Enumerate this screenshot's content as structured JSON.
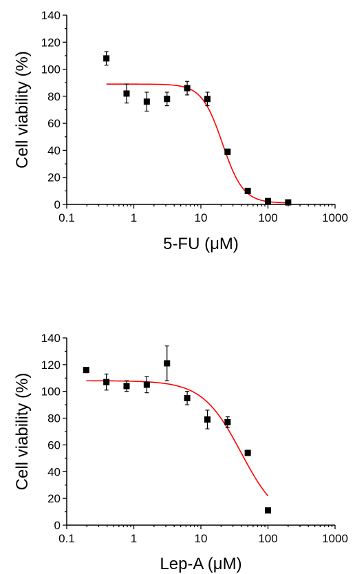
{
  "chart_data": [
    {
      "type": "scatter",
      "title": "",
      "xlabel": "5-FU (μM)",
      "ylabel": "Cell viability (%)",
      "x_scale": "log",
      "xlim": [
        0.1,
        1000
      ],
      "ylim": [
        0,
        140
      ],
      "x_ticks": [
        0.1,
        1,
        10,
        100,
        1000
      ],
      "x_tick_labels": [
        "0.1",
        "1",
        "10",
        "100",
        "1000"
      ],
      "y_ticks": [
        0,
        20,
        40,
        60,
        80,
        100,
        120,
        140
      ],
      "y_tick_labels": [
        "0",
        "20",
        "40",
        "60",
        "80",
        "100",
        "120",
        "140"
      ],
      "grid": false,
      "marker_color": "#000000",
      "fit_color": "#ff0000",
      "points": [
        {
          "x": 0.39,
          "y": 108,
          "err": 5
        },
        {
          "x": 0.78,
          "y": 82,
          "err": 7
        },
        {
          "x": 1.56,
          "y": 76,
          "err": 7
        },
        {
          "x": 3.125,
          "y": 78,
          "err": 5
        },
        {
          "x": 6.25,
          "y": 86,
          "err": 5
        },
        {
          "x": 12.5,
          "y": 78,
          "err": 5
        },
        {
          "x": 25,
          "y": 39,
          "err": 2
        },
        {
          "x": 50,
          "y": 10,
          "err": 1.5
        },
        {
          "x": 100,
          "y": 2.5,
          "err": 1
        },
        {
          "x": 200,
          "y": 1.5,
          "err": 0.8
        }
      ],
      "fit": {
        "top": 89,
        "bottom": 1,
        "ic50": 21,
        "hill": 2.8,
        "x_from": 0.39,
        "x_to": 200
      }
    },
    {
      "type": "scatter",
      "title": "",
      "xlabel": "Lep-A (μM)",
      "ylabel": "Cell viability (%)",
      "x_scale": "log",
      "xlim": [
        0.1,
        1000
      ],
      "ylim": [
        0,
        140
      ],
      "x_ticks": [
        0.1,
        1,
        10,
        100,
        1000
      ],
      "x_tick_labels": [
        "0.1",
        "1",
        "10",
        "100",
        "1000"
      ],
      "y_ticks": [
        0,
        20,
        40,
        60,
        80,
        100,
        120,
        140
      ],
      "y_tick_labels": [
        "0",
        "20",
        "40",
        "60",
        "80",
        "100",
        "120",
        "140"
      ],
      "grid": false,
      "marker_color": "#000000",
      "fit_color": "#ff0000",
      "points": [
        {
          "x": 0.195,
          "y": 116,
          "err": 2
        },
        {
          "x": 0.39,
          "y": 107,
          "err": 6
        },
        {
          "x": 0.78,
          "y": 104,
          "err": 4
        },
        {
          "x": 1.56,
          "y": 105,
          "err": 6
        },
        {
          "x": 3.125,
          "y": 121,
          "err": 13
        },
        {
          "x": 6.25,
          "y": 95,
          "err": 5
        },
        {
          "x": 12.5,
          "y": 79,
          "err": 7
        },
        {
          "x": 25,
          "y": 77,
          "err": 4
        },
        {
          "x": 50,
          "y": 54,
          "err": 2
        },
        {
          "x": 100,
          "y": 11,
          "err": 1
        }
      ],
      "fit": {
        "top": 108,
        "bottom": 0,
        "ic50": 40,
        "hill": 1.5,
        "x_from": 0.195,
        "x_to": 100
      }
    }
  ]
}
